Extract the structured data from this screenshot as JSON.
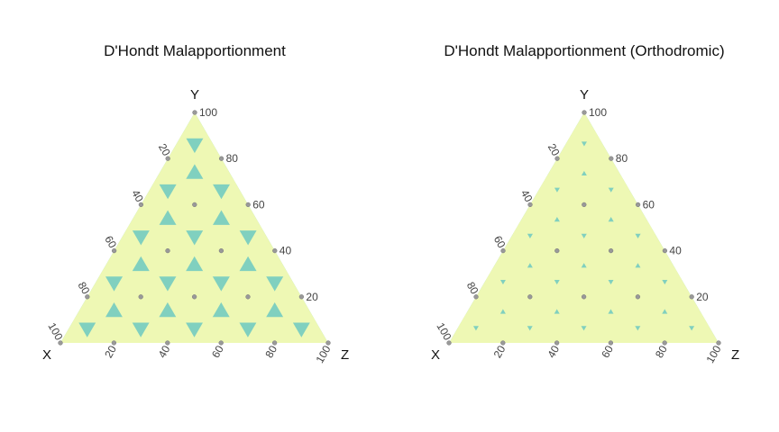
{
  "chart_data": [
    {
      "type": "ternary",
      "title": "D'Hondt Malapportionment",
      "axes": {
        "left": "X",
        "top": "Y",
        "right": "Z"
      },
      "ticks": {
        "left": [
          "100",
          "80",
          "60",
          "40",
          "20"
        ],
        "right": [
          "100",
          "80",
          "60",
          "40",
          "20"
        ],
        "bottom": [
          "20",
          "40",
          "60",
          "80",
          "100"
        ]
      },
      "tick_values": [
        0,
        20,
        40,
        60,
        80,
        100
      ],
      "colors": {
        "proportional": "#eef8b4",
        "malapportioned": "#80d0bf",
        "point": "#999999"
      }
    },
    {
      "type": "ternary",
      "title": "D'Hondt Malapportionment (Orthodromic)",
      "axes": {
        "left": "X",
        "top": "Y",
        "right": "Z"
      },
      "ticks": {
        "left": [
          "100",
          "80",
          "60",
          "40",
          "20"
        ],
        "right": [
          "100",
          "80",
          "60",
          "40",
          "20"
        ],
        "bottom": [
          "20",
          "40",
          "60",
          "80",
          "100"
        ]
      },
      "tick_values": [
        0,
        20,
        40,
        60,
        80,
        100
      ],
      "colors": {
        "proportional": "#eef8b4",
        "malapportioned": "#80d0bf",
        "point": "#999999"
      }
    }
  ]
}
